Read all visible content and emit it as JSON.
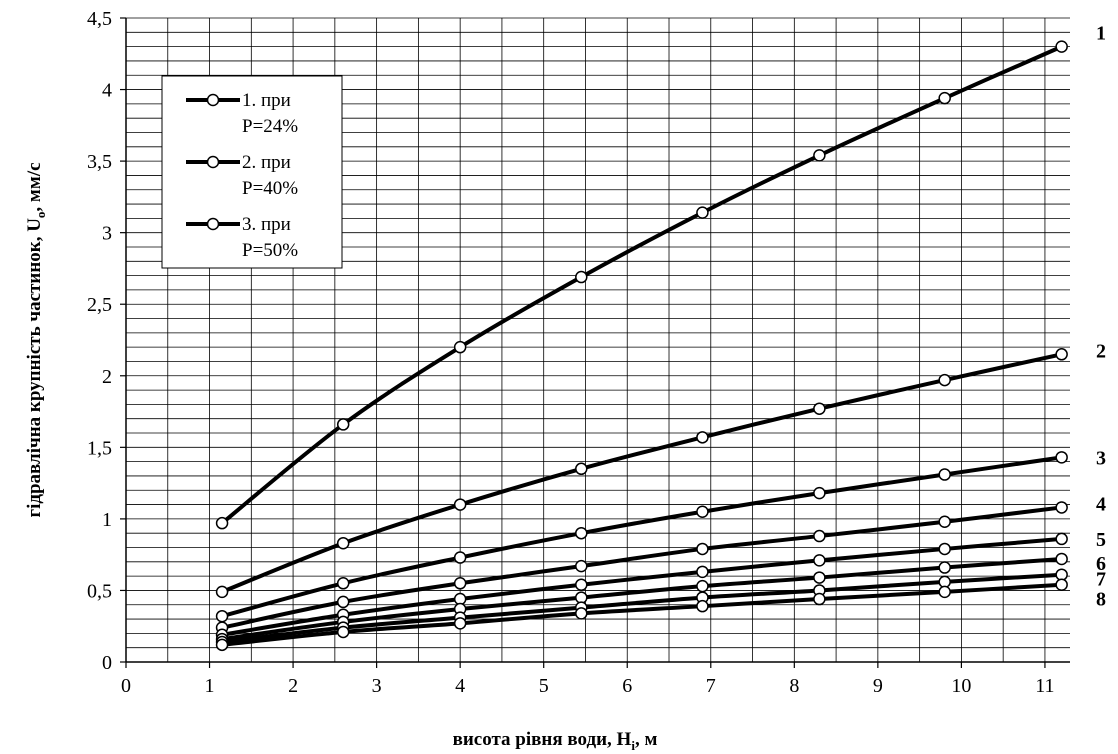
{
  "chart_data": {
    "type": "line",
    "xlabel": "висота рівня води, H",
    "xlabel_sub": "i",
    "xlabel_suffix": ", м",
    "ylabel": "гідравлічна крупність частинок, U",
    "ylabel_sub": "o",
    "ylabel_suffix": ", мм/с",
    "xlim": [
      0,
      11.3
    ],
    "ylim": [
      0,
      4.5
    ],
    "x_ticks": [
      0,
      1,
      2,
      3,
      4,
      5,
      6,
      7,
      8,
      9,
      10,
      11
    ],
    "x_tick_labels": [
      "0",
      "1",
      "2",
      "3",
      "4",
      "5",
      "6",
      "7",
      "8",
      "9",
      "10",
      "11"
    ],
    "y_ticks": [
      0,
      0.5,
      1,
      1.5,
      2,
      2.5,
      3,
      3.5,
      4,
      4.5
    ],
    "y_tick_labels": [
      "0",
      "0,5",
      "1",
      "1,5",
      "2",
      "2,5",
      "3",
      "3,5",
      "4",
      "4,5"
    ],
    "grid": true,
    "legend_position": "top-left",
    "legend": [
      {
        "line1": "1. при",
        "line2": "P=24%"
      },
      {
        "line1": "2. при",
        "line2": "P=40%"
      },
      {
        "line1": "3. при",
        "line2": "P=50%"
      }
    ],
    "x": [
      1.15,
      2.6,
      4.0,
      5.45,
      6.9,
      8.3,
      9.8,
      11.2
    ],
    "series": [
      {
        "label": "1",
        "values": [
          0.97,
          1.66,
          2.2,
          2.69,
          3.14,
          3.54,
          3.94,
          4.3
        ]
      },
      {
        "label": "2",
        "values": [
          0.49,
          0.83,
          1.1,
          1.35,
          1.57,
          1.77,
          1.97,
          2.15
        ]
      },
      {
        "label": "3",
        "values": [
          0.32,
          0.55,
          0.73,
          0.9,
          1.05,
          1.18,
          1.31,
          1.43
        ]
      },
      {
        "label": "4",
        "values": [
          0.24,
          0.42,
          0.55,
          0.67,
          0.79,
          0.88,
          0.98,
          1.08
        ]
      },
      {
        "label": "5",
        "values": [
          0.19,
          0.33,
          0.44,
          0.54,
          0.63,
          0.71,
          0.79,
          0.86
        ]
      },
      {
        "label": "6",
        "values": [
          0.16,
          0.28,
          0.37,
          0.45,
          0.53,
          0.59,
          0.66,
          0.72
        ]
      },
      {
        "label": "7",
        "values": [
          0.14,
          0.24,
          0.31,
          0.38,
          0.45,
          0.5,
          0.56,
          0.61
        ]
      },
      {
        "label": "8",
        "values": [
          0.12,
          0.21,
          0.27,
          0.34,
          0.39,
          0.44,
          0.49,
          0.54
        ]
      }
    ],
    "colors": {
      "line": "#000000",
      "marker_fill": "#ffffff",
      "grid": "#000000"
    }
  }
}
